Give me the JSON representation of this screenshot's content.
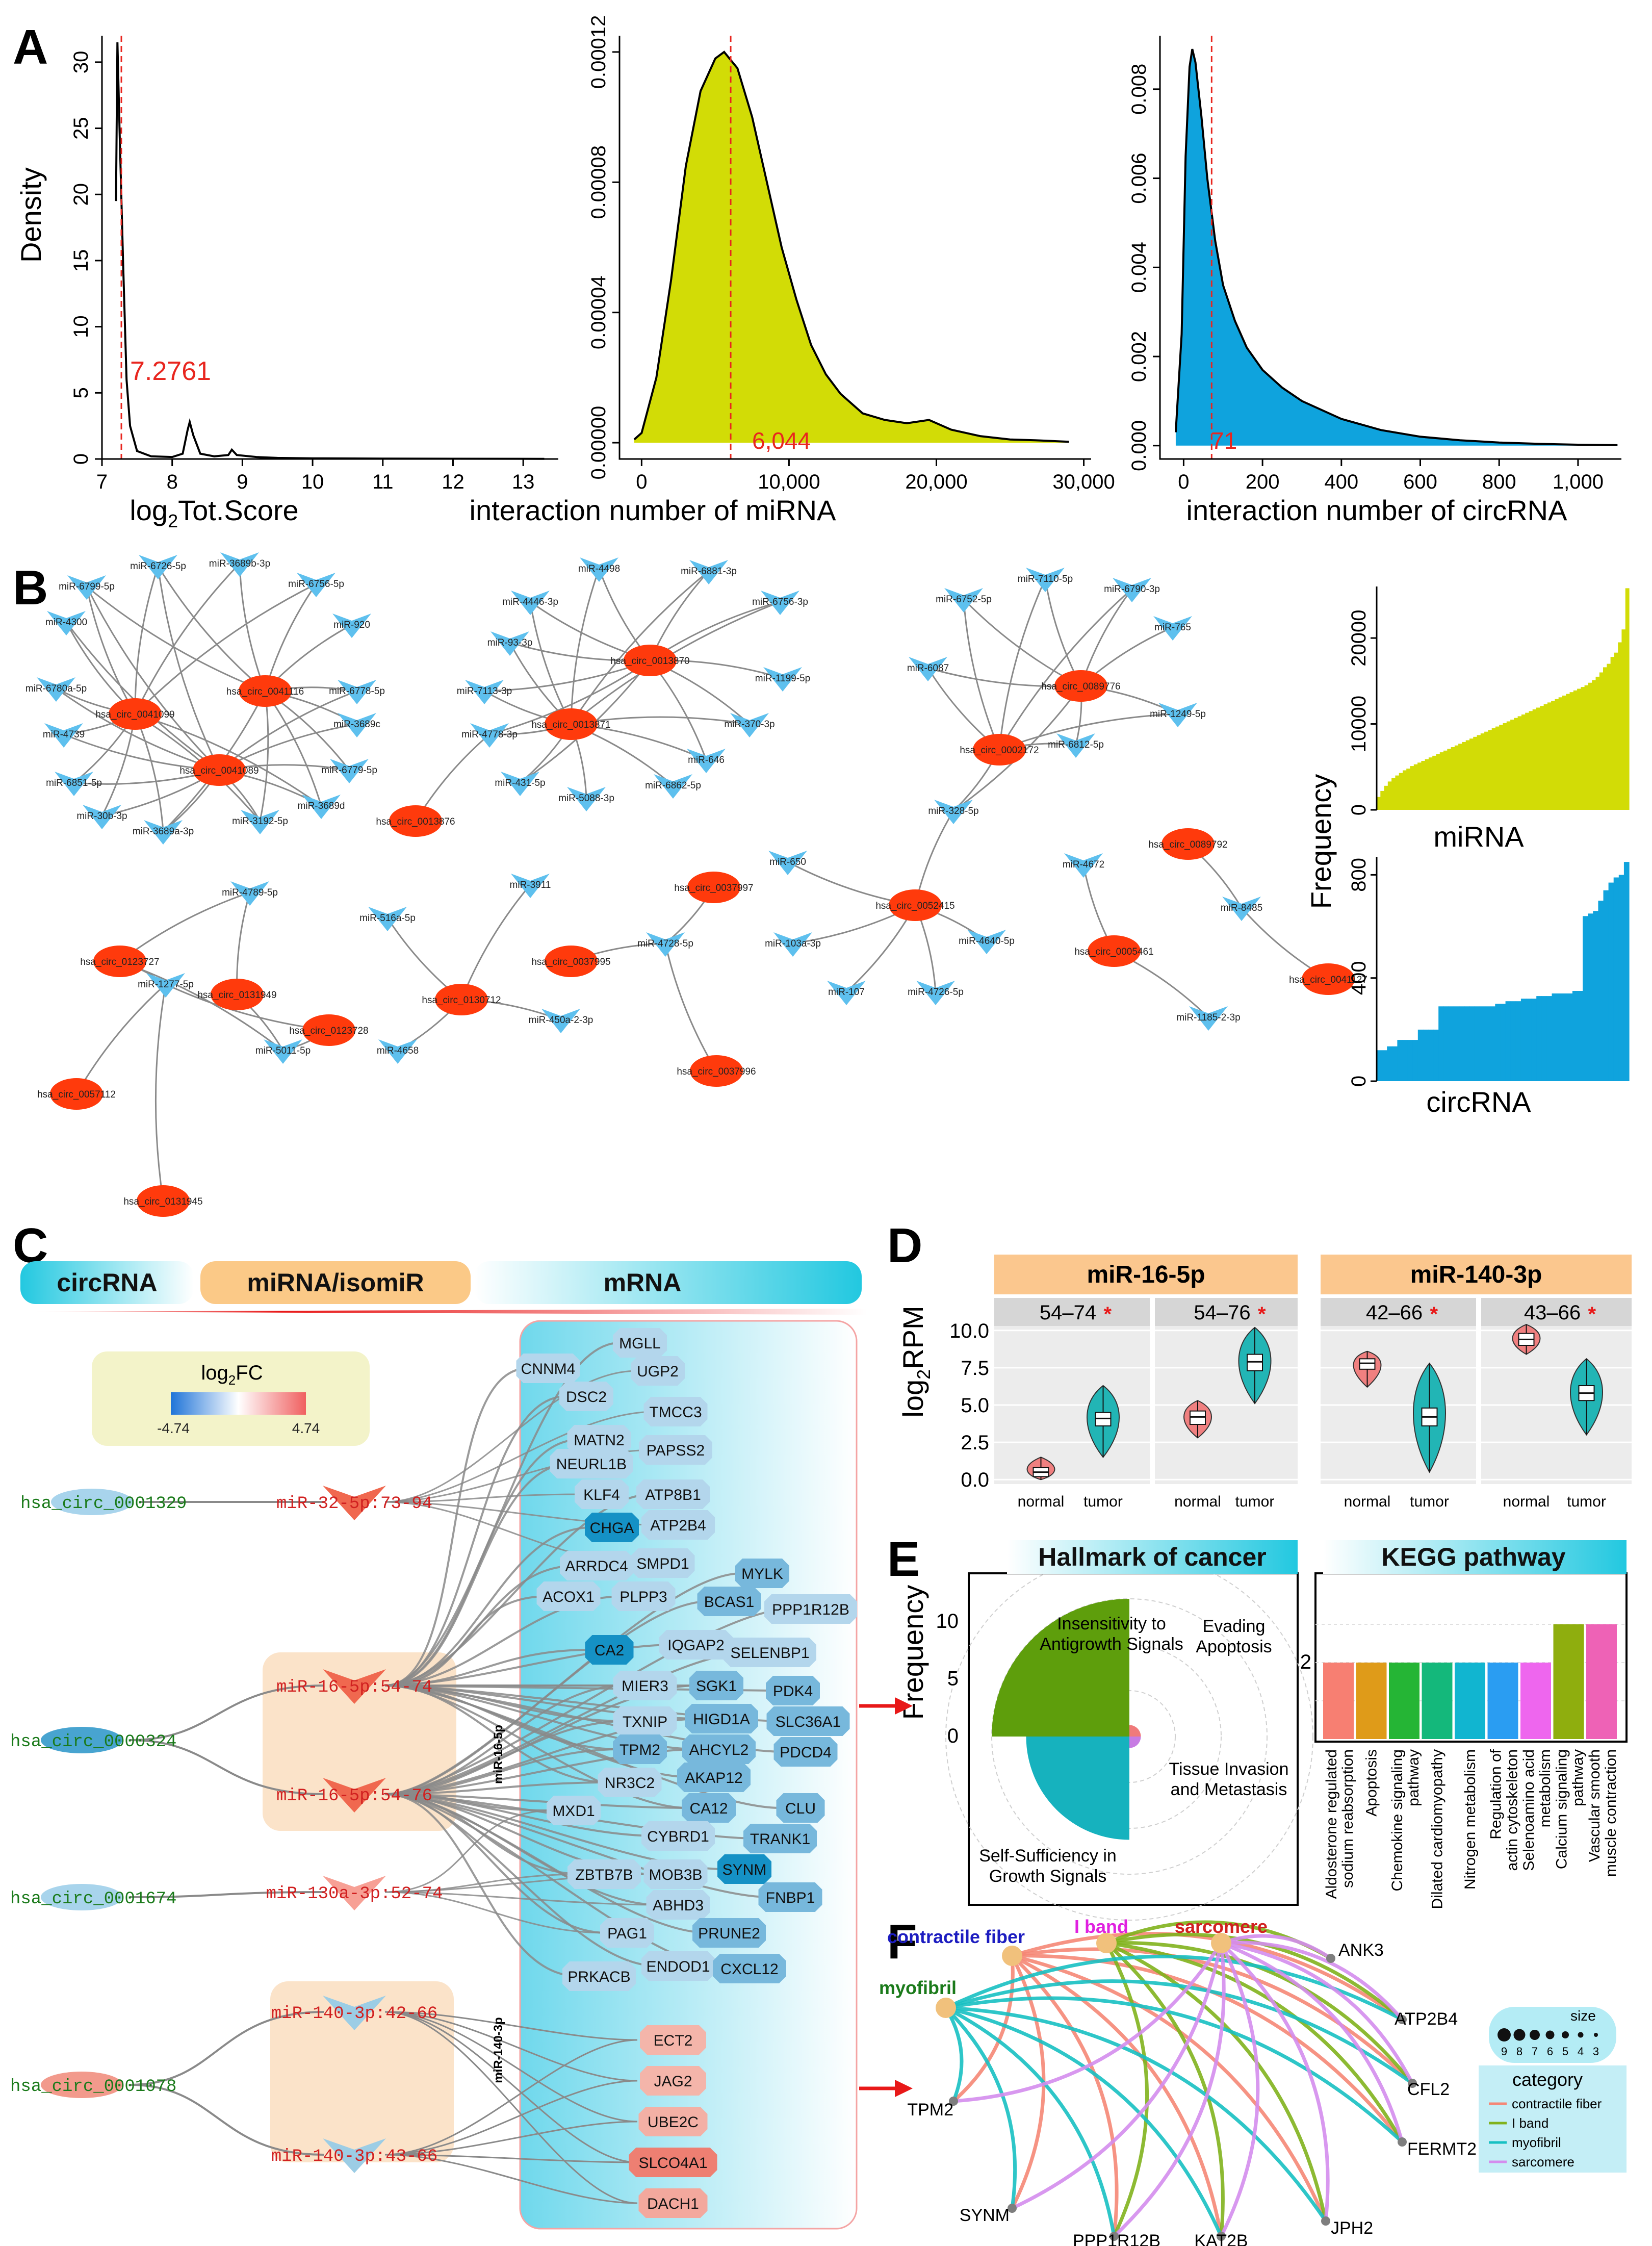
{
  "panels": {
    "A": "A",
    "B": "B",
    "C": "C",
    "D": "D",
    "E": "E",
    "F": "F"
  },
  "chart_data": [
    {
      "type": "area",
      "id": "A1",
      "xlabel_main": "log",
      "xlabel_sub": "2",
      "xlabel_rest": "Tot.Score",
      "ylabel": "Density",
      "xlim": [
        7,
        13.5
      ],
      "ylim": [
        0,
        32
      ],
      "x_ticks": [
        "7",
        "8",
        "9",
        "10",
        "11",
        "12",
        "13"
      ],
      "y_ticks": [
        "0",
        "5",
        "10",
        "15",
        "20",
        "25",
        "30"
      ],
      "threshold": 7.2761,
      "threshold_label": "7.2761",
      "curve": [
        [
          7.2,
          19.5
        ],
        [
          7.22,
          31.5
        ],
        [
          7.25,
          25
        ],
        [
          7.3,
          15
        ],
        [
          7.35,
          6
        ],
        [
          7.4,
          2.5
        ],
        [
          7.5,
          0.6
        ],
        [
          7.7,
          0.2
        ],
        [
          8.0,
          0.15
        ],
        [
          8.15,
          0.4
        ],
        [
          8.22,
          2.2
        ],
        [
          8.25,
          2.8
        ],
        [
          8.3,
          1.8
        ],
        [
          8.4,
          0.4
        ],
        [
          8.6,
          0.2
        ],
        [
          8.8,
          0.3
        ],
        [
          8.85,
          0.7
        ],
        [
          8.92,
          0.3
        ],
        [
          9.2,
          0.15
        ],
        [
          9.5,
          0.08
        ],
        [
          10,
          0.05
        ],
        [
          11,
          0.03
        ],
        [
          12,
          0.02
        ],
        [
          13.3,
          0.01
        ]
      ],
      "fill": "#ffffff"
    },
    {
      "type": "area",
      "id": "A2",
      "xlabel": "interaction number of miRNA",
      "ylabel": "",
      "xlim": [
        -1500,
        30500
      ],
      "ylim": [
        -5e-06,
        0.000125
      ],
      "x_ticks": [
        "0",
        "10,000",
        "20,000",
        "30,000"
      ],
      "x_tick_values": [
        0,
        10000,
        20000,
        30000
      ],
      "y_ticks": [
        "0.00000",
        "0.00004",
        "0.00008",
        "0.00012"
      ],
      "y_tick_values": [
        0,
        4e-05,
        8e-05,
        0.00012
      ],
      "threshold": 6044,
      "threshold_label": "6,044",
      "curve": [
        [
          -500,
          1e-06
        ],
        [
          0,
          3e-06
        ],
        [
          1000,
          2e-05
        ],
        [
          2000,
          5e-05
        ],
        [
          3000,
          8.5e-05
        ],
        [
          4000,
          0.000108
        ],
        [
          5000,
          0.000118
        ],
        [
          5600,
          0.00012
        ],
        [
          6500,
          0.000115
        ],
        [
          7500,
          0.0001
        ],
        [
          8500,
          8e-05
        ],
        [
          9500,
          6e-05
        ],
        [
          10500,
          4.4e-05
        ],
        [
          11500,
          3e-05
        ],
        [
          12500,
          2.1e-05
        ],
        [
          13500,
          1.5e-05
        ],
        [
          15000,
          9e-06
        ],
        [
          16500,
          7e-06
        ],
        [
          18000,
          6e-06
        ],
        [
          19500,
          7e-06
        ],
        [
          21000,
          4e-06
        ],
        [
          23000,
          2e-06
        ],
        [
          25000,
          1e-06
        ],
        [
          27000,
          7e-07
        ],
        [
          29000,
          3e-07
        ]
      ],
      "fill": "#d2dc06"
    },
    {
      "type": "area",
      "id": "A3",
      "xlabel": "interaction number of circRNA",
      "ylabel": "",
      "xlim": [
        -60,
        1110
      ],
      "ylim": [
        -0.0003,
        0.0092
      ],
      "x_ticks": [
        "0",
        "200",
        "400",
        "600",
        "800",
        "1,000"
      ],
      "x_tick_values": [
        0,
        200,
        400,
        600,
        800,
        1000
      ],
      "y_ticks": [
        "0.000",
        "0.002",
        "0.004",
        "0.006",
        "0.008"
      ],
      "y_tick_values": [
        0,
        0.002,
        0.004,
        0.006,
        0.008
      ],
      "threshold": 71,
      "threshold_label": "71",
      "curve": [
        [
          -20,
          0.0003
        ],
        [
          -5,
          0.0025
        ],
        [
          5,
          0.0065
        ],
        [
          15,
          0.0085
        ],
        [
          22,
          0.0089
        ],
        [
          30,
          0.0086
        ],
        [
          45,
          0.0074
        ],
        [
          60,
          0.006
        ],
        [
          80,
          0.0046
        ],
        [
          100,
          0.0036
        ],
        [
          130,
          0.0028
        ],
        [
          160,
          0.0022
        ],
        [
          200,
          0.0017
        ],
        [
          250,
          0.0013
        ],
        [
          300,
          0.001
        ],
        [
          400,
          0.0006
        ],
        [
          500,
          0.00035
        ],
        [
          600,
          0.0002
        ],
        [
          700,
          0.00012
        ],
        [
          800,
          7e-05
        ],
        [
          900,
          4e-05
        ],
        [
          1000,
          2e-05
        ],
        [
          1100,
          1e-05
        ]
      ],
      "fill": "#0fa3dd"
    },
    {
      "type": "bar",
      "id": "B-miRNA",
      "xlabel": "miRNA",
      "ylabel": "Frequency",
      "ylim": [
        0,
        26000
      ],
      "y_ticks": [
        "0",
        "10000",
        "20000"
      ],
      "y_tick_values": [
        0,
        10000,
        20000
      ],
      "values": [
        1500,
        2200,
        2800,
        3300,
        3700,
        4000,
        4300,
        4600,
        4800,
        5100,
        5300,
        5500,
        5700,
        5900,
        6100,
        6300,
        6500,
        6700,
        6900,
        7100,
        7300,
        7500,
        7700,
        7900,
        8100,
        8300,
        8500,
        8700,
        8900,
        9100,
        9300,
        9500,
        9700,
        9900,
        10100,
        10300,
        10500,
        10700,
        10900,
        11100,
        11300,
        11500,
        11700,
        11900,
        12100,
        12300,
        12500,
        12700,
        12900,
        13100,
        13300,
        13500,
        13700,
        13900,
        14100,
        14300,
        14500,
        14800,
        15100,
        15500,
        16000,
        16600,
        17000,
        17800,
        18300,
        19500,
        21000,
        25800
      ],
      "fill": "#d2dc06"
    },
    {
      "type": "bar",
      "id": "B-circRNA",
      "xlabel": "circRNA",
      "ylabel": "",
      "ylim": [
        0,
        870
      ],
      "y_ticks": [
        "0",
        "400",
        "800"
      ],
      "y_tick_values": [
        0,
        400,
        800
      ],
      "values": [
        120,
        120,
        135,
        135,
        160,
        160,
        160,
        160,
        200,
        200,
        200,
        200,
        290,
        290,
        290,
        290,
        290,
        290,
        290,
        290,
        290,
        290,
        290,
        300,
        300,
        310,
        310,
        310,
        320,
        320,
        320,
        330,
        330,
        330,
        340,
        340,
        340,
        340,
        350,
        350,
        640,
        650,
        660,
        700,
        740,
        770,
        790,
        800,
        850
      ],
      "fill": "#0fa3dd"
    },
    {
      "type": "violin",
      "id": "D",
      "ylabel_main": "log",
      "ylabel_sub": "2",
      "ylabel_rest": "RPM",
      "ylim": [
        -0.3,
        10.3
      ],
      "y_ticks": [
        "0.0",
        "2.5",
        "5.0",
        "7.5",
        "10.0"
      ],
      "y_tick_values": [
        0,
        2.5,
        5,
        7.5,
        10
      ],
      "groups": [
        {
          "title": "miR-16-5p",
          "facets": [
            {
              "label": "54–74",
              "star": "*",
              "normal": {
                "median": 0.5,
                "q1": 0.2,
                "q3": 0.8,
                "min": 0,
                "max": 1.5
              },
              "tumor": {
                "median": 4.1,
                "q1": 3.6,
                "q3": 4.5,
                "min": 1.5,
                "max": 6.3
              }
            },
            {
              "label": "54–76",
              "star": "*",
              "normal": {
                "median": 4.2,
                "q1": 3.7,
                "q3": 4.6,
                "min": 2.8,
                "max": 5.3
              },
              "tumor": {
                "median": 7.9,
                "q1": 7.3,
                "q3": 8.4,
                "min": 5.1,
                "max": 10.2
              }
            }
          ]
        },
        {
          "title": "miR-140-3p",
          "facets": [
            {
              "label": "42–66",
              "star": "*",
              "normal": {
                "median": 7.8,
                "q1": 7.4,
                "q3": 8.1,
                "min": 6.2,
                "max": 8.6
              },
              "tumor": {
                "median": 4.2,
                "q1": 3.6,
                "q3": 4.8,
                "min": 0.5,
                "max": 7.8
              }
            },
            {
              "label": "43–66",
              "star": "*",
              "normal": {
                "median": 9.4,
                "q1": 9.0,
                "q3": 9.8,
                "min": 8.4,
                "max": 10.4
              },
              "tumor": {
                "median": 5.8,
                "q1": 5.3,
                "q3": 6.3,
                "min": 3.0,
                "max": 8.1
              }
            }
          ]
        }
      ],
      "x_labels": [
        "normal",
        "tumor"
      ],
      "normal_color": "#f08080",
      "tumor_color": "#22b5b5"
    },
    {
      "type": "bar",
      "id": "E-hallmark",
      "title": "Hallmark of cancer",
      "ylabel": "Frequency",
      "y_ticks": [
        "0",
        "5",
        "10"
      ],
      "y_tick_values": [
        0,
        5,
        10
      ],
      "categories": [
        "Insensitivity to Antigrowth Signals",
        "Evading Apoptosis",
        "Tissue Invasion and Metastasis",
        "Self-Sufficiency in Growth Signals"
      ],
      "values": [
        12,
        1,
        1,
        9
      ],
      "colors": [
        "#5e9e0c",
        "#f07a7a",
        "#c77be3",
        "#16b2be"
      ]
    },
    {
      "type": "bar",
      "id": "E-kegg",
      "title": "KEGG pathway",
      "y_ticks": [
        "2"
      ],
      "y_tick_values": [
        2
      ],
      "categories": [
        "Aldosterone regulated sodium reabsorption",
        "Apoptosis",
        "Chemokine signaling pathway",
        "Dilated cardiomyopathy",
        "Nitrogen metabolism",
        "Regulation of actin cytoskeleton",
        "Selenoamino acid metabolism",
        "Calcium signaling pathway",
        "Vascular smooth muscle contraction"
      ],
      "values": [
        2,
        2,
        2,
        2,
        2,
        2,
        2,
        3,
        3
      ],
      "colors": [
        "#f77f72",
        "#df9b19",
        "#25b535",
        "#14b87b",
        "#11b5d0",
        "#2a9df2",
        "#ee66ee",
        "#8fae0e",
        "#ee62b6"
      ]
    },
    {
      "type": "network",
      "id": "F",
      "categories": [
        "contractile fiber",
        "I band",
        "myofibril",
        "sarcomere"
      ],
      "category_colors": [
        "#f58776",
        "#81b21d",
        "#17c0c2",
        "#d48ded"
      ],
      "genes": [
        "ANK3",
        "ATP2B4",
        "CFL2",
        "FERMT2",
        "JPH2",
        "KAT2B",
        "PPP1R12B",
        "SYNM",
        "TPM2"
      ],
      "legend_title": "category",
      "size_title": "size",
      "size_values": [
        "9",
        "8",
        "7",
        "6",
        "5",
        "4",
        "3"
      ]
    }
  ],
  "panelB": {
    "mirnas": [
      "miR-6726-5p",
      "miR-3689b-3p",
      "miR-6799-5p",
      "miR-6756-5p",
      "miR-4300",
      "miR-920",
      "miR-6780a-5p",
      "miR-6778-5p",
      "miR-4739",
      "miR-3689c",
      "miR-6851-5p",
      "miR-6779-5p",
      "miR-30b-3p",
      "miR-3689a-3p",
      "miR-3192-5p",
      "miR-3689d",
      "miR-4498",
      "miR-6881-3p",
      "miR-4446-3p",
      "miR-6756-3p",
      "miR-93-3p",
      "miR-1199-5p",
      "miR-7113-3p",
      "miR-370-3p",
      "miR-4778-3p",
      "miR-646",
      "miR-431-5p",
      "miR-5088-3p",
      "miR-6862-5p",
      "miR-7110-5p",
      "miR-6790-3p",
      "miR-6752-5p",
      "miR-765",
      "miR-6087",
      "miR-1249-5p",
      "miR-6812-5p",
      "miR-328-5p",
      "miR-4789-5p",
      "miR-516a-5p",
      "miR-3911",
      "miR-650",
      "miR-4672",
      "miR-8485",
      "miR-103a-3p",
      "miR-4640-5p",
      "miR-4728-5p",
      "miR-107",
      "miR-4726-5p",
      "miR-1185-2-3p",
      "miR-1277-5p",
      "miR-5011-5p",
      "miR-450a-2-3p",
      "miR-4658"
    ],
    "circs": [
      "hsa_circ_0041099",
      "hsa_circ_0041116",
      "hsa_circ_0041089",
      "hsa_circ_0013870",
      "hsa_circ_0013871",
      "hsa_circ_0013876",
      "hsa_circ_0089776",
      "hsa_circ_0002172",
      "hsa_circ_0037997",
      "hsa_circ_0052415",
      "hsa_circ_0089792",
      "hsa_circ_0005461",
      "hsa_circ_0041127",
      "hsa_circ_0123727",
      "hsa_circ_0131949",
      "hsa_circ_0123728",
      "hsa_circ_0057112",
      "hsa_circ_0131945",
      "hsa_circ_0130712",
      "hsa_circ_0037995",
      "hsa_circ_0037996"
    ]
  },
  "panelC": {
    "header": [
      "circRNA",
      "miRNA/isomiR",
      "mRNA"
    ],
    "legend_title_main": "log",
    "legend_title_sub": "2",
    "legend_title_rest": "FC",
    "legend_min": "-4.74",
    "legend_max": "4.74",
    "circs": [
      "hsa_circ_0001329",
      "hsa_circ_0000324",
      "hsa_circ_0001674",
      "hsa_circ_0001078"
    ],
    "mirs": [
      "miR-32-5p:73-94",
      "miR-16-5p:54-74",
      "miR-16-5p:54-76",
      "miR-130a-3p:52-74",
      "miR-140-3p:42-66",
      "miR-140-3p:43-66"
    ],
    "side_labels": [
      "miR-16-5p",
      "miR-140-3p"
    ],
    "genes_blue": [
      "MGLL",
      "CNNM4",
      "UGP2",
      "DSC2",
      "TMCC3",
      "MATN2",
      "PAPSS2",
      "NEURL1B",
      "KLF4",
      "ATP8B1",
      "ATP2B4",
      "CHGA",
      "SMPD1",
      "ARRDC4",
      "MYLK",
      "ACOX1",
      "PLPP3",
      "BCAS1",
      "PPP1R12B",
      "CA2",
      "IQGAP2",
      "SELENBP1",
      "MIER3",
      "SGK1",
      "PDK4",
      "HIGD1A",
      "TXNIP",
      "SLC36A1",
      "AHCYL2",
      "TPM2",
      "PDCD4",
      "AKAP12",
      "NR3C2",
      "CA12",
      "CLU",
      "MXD1",
      "TRANK1",
      "CYBRD1",
      "SYNM",
      "ZBTB7B",
      "MOB3B",
      "FNBP1",
      "ABHD3",
      "PAG1",
      "PRUNE2",
      "ENDOD1",
      "PRKACB",
      "CXCL12"
    ],
    "genes_red": [
      "ECT2",
      "JAG2",
      "UBE2C",
      "SLCO4A1",
      "DACH1"
    ]
  }
}
